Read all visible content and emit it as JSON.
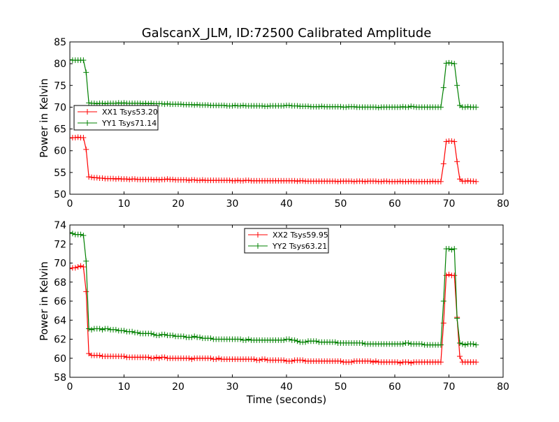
{
  "chart_data": [
    {
      "type": "line",
      "title": "GalscanX_JLM, ID:72500 Calibrated Amplitude",
      "xlabel": "",
      "ylabel": "Power in Kelvin",
      "xlim": [
        0,
        80
      ],
      "ylim": [
        50,
        85
      ],
      "xticks": [
        "0",
        "10",
        "20",
        "30",
        "40",
        "50",
        "60",
        "70",
        "80"
      ],
      "yticks": [
        "50",
        "55",
        "60",
        "65",
        "70",
        "75",
        "80",
        "85"
      ],
      "legend_position": "center-left",
      "x_start": 0,
      "x_step": 0.5,
      "series": [
        {
          "name": "XX1 Tsys53.20",
          "color": "#ff0000",
          "values": [
            62.9,
            63.0,
            63.0,
            63.1,
            63.0,
            63.0,
            60.3,
            54.0,
            53.9,
            53.8,
            53.8,
            53.7,
            53.7,
            53.6,
            53.6,
            53.6,
            53.6,
            53.5,
            53.6,
            53.5,
            53.5,
            53.5,
            53.4,
            53.5,
            53.5,
            53.4,
            53.4,
            53.4,
            53.4,
            53.4,
            53.4,
            53.3,
            53.4,
            53.3,
            53.4,
            53.4,
            53.5,
            53.4,
            53.4,
            53.3,
            53.3,
            53.3,
            53.3,
            53.3,
            53.2,
            53.3,
            53.3,
            53.2,
            53.2,
            53.3,
            53.2,
            53.2,
            53.2,
            53.2,
            53.2,
            53.2,
            53.2,
            53.2,
            53.2,
            53.2,
            53.1,
            53.1,
            53.2,
            53.1,
            53.1,
            53.2,
            53.2,
            53.1,
            53.1,
            53.1,
            53.1,
            53.1,
            53.1,
            53.1,
            53.1,
            53.1,
            53.1,
            53.1,
            53.1,
            53.1,
            53.1,
            53.1,
            53.1,
            53.1,
            53.0,
            53.1,
            53.1,
            53.0,
            53.0,
            53.0,
            53.0,
            53.0,
            53.0,
            53.0,
            53.0,
            53.0,
            53.0,
            53.0,
            53.0,
            52.9,
            53.0,
            53.0,
            53.0,
            53.0,
            53.0,
            52.9,
            53.0,
            53.0,
            53.0,
            52.9,
            53.0,
            53.0,
            53.0,
            53.0,
            52.9,
            52.9,
            53.0,
            53.0,
            52.9,
            52.9,
            52.9,
            52.9,
            53.0,
            52.9,
            52.9,
            52.9,
            53.0,
            52.9,
            52.9,
            52.9,
            52.9,
            52.9,
            52.9,
            52.9,
            53.0,
            52.9,
            52.9,
            52.9,
            57.0,
            62.1,
            62.2,
            62.2,
            62.1,
            57.5,
            53.5,
            53.0,
            53.0,
            53.1,
            53.0,
            53.0,
            52.9
          ]
        },
        {
          "name": "YY1 Tsys71.14",
          "color": "#008000",
          "values": [
            80.9,
            80.8,
            80.8,
            80.8,
            80.8,
            80.8,
            78.0,
            71.0,
            70.9,
            70.9,
            70.8,
            70.9,
            70.9,
            70.8,
            70.9,
            70.9,
            70.9,
            70.9,
            71.0,
            70.9,
            71.0,
            70.9,
            70.9,
            70.9,
            70.9,
            70.9,
            70.9,
            70.8,
            70.9,
            70.8,
            70.9,
            70.8,
            70.8,
            70.8,
            70.8,
            70.7,
            70.8,
            70.7,
            70.7,
            70.7,
            70.7,
            70.7,
            70.6,
            70.6,
            70.6,
            70.6,
            70.5,
            70.6,
            70.5,
            70.5,
            70.5,
            70.5,
            70.4,
            70.4,
            70.4,
            70.4,
            70.4,
            70.4,
            70.3,
            70.3,
            70.3,
            70.4,
            70.3,
            70.3,
            70.4,
            70.3,
            70.3,
            70.3,
            70.3,
            70.3,
            70.3,
            70.3,
            70.2,
            70.2,
            70.3,
            70.3,
            70.3,
            70.3,
            70.3,
            70.3,
            70.4,
            70.4,
            70.3,
            70.3,
            70.3,
            70.2,
            70.2,
            70.2,
            70.2,
            70.1,
            70.1,
            70.1,
            70.1,
            70.2,
            70.1,
            70.1,
            70.1,
            70.1,
            70.1,
            70.1,
            70.1,
            70.0,
            70.0,
            70.1,
            70.1,
            70.1,
            70.0,
            70.0,
            70.0,
            70.0,
            70.0,
            70.0,
            70.0,
            70.0,
            69.9,
            70.0,
            70.0,
            70.0,
            70.0,
            70.0,
            70.0,
            70.0,
            70.0,
            70.1,
            70.0,
            70.0,
            70.2,
            70.1,
            70.0,
            70.0,
            70.0,
            70.0,
            70.0,
            70.0,
            70.0,
            70.0,
            70.0,
            70.0,
            74.5,
            80.1,
            80.2,
            80.1,
            80.0,
            75.0,
            70.4,
            70.0,
            70.0,
            70.1,
            70.0,
            70.0,
            70.0
          ]
        }
      ]
    },
    {
      "type": "line",
      "title": "",
      "xlabel": "Time (seconds)",
      "ylabel": "Power in Kelvin",
      "xlim": [
        0,
        80
      ],
      "ylim": [
        58,
        74
      ],
      "xticks": [
        "0",
        "10",
        "20",
        "30",
        "40",
        "50",
        "60",
        "70",
        "80"
      ],
      "yticks": [
        "58",
        "60",
        "62",
        "64",
        "66",
        "68",
        "70",
        "72",
        "74"
      ],
      "legend_position": "upper-center",
      "x_start": 0,
      "x_step": 0.5,
      "series": [
        {
          "name": "XX2 Tsys59.95",
          "color": "#ff0000",
          "values": [
            69.4,
            69.5,
            69.5,
            69.6,
            69.7,
            69.6,
            67.0,
            60.5,
            60.3,
            60.3,
            60.3,
            60.3,
            60.2,
            60.2,
            60.2,
            60.2,
            60.2,
            60.2,
            60.2,
            60.2,
            60.2,
            60.1,
            60.1,
            60.1,
            60.1,
            60.1,
            60.1,
            60.1,
            60.1,
            60.1,
            60.0,
            60.0,
            60.1,
            60.0,
            60.1,
            60.1,
            60.0,
            60.0,
            60.0,
            60.0,
            60.0,
            60.0,
            60.0,
            60.0,
            60.0,
            59.9,
            60.0,
            60.0,
            60.0,
            60.0,
            60.0,
            60.0,
            60.0,
            59.9,
            59.9,
            60.0,
            59.9,
            59.9,
            59.9,
            59.9,
            59.9,
            59.9,
            59.9,
            59.9,
            59.9,
            59.9,
            59.9,
            59.9,
            59.9,
            59.8,
            59.8,
            59.9,
            59.9,
            59.8,
            59.8,
            59.8,
            59.8,
            59.8,
            59.8,
            59.8,
            59.7,
            59.7,
            59.7,
            59.8,
            59.8,
            59.8,
            59.8,
            59.7,
            59.7,
            59.7,
            59.7,
            59.7,
            59.7,
            59.7,
            59.7,
            59.7,
            59.7,
            59.7,
            59.7,
            59.7,
            59.7,
            59.6,
            59.6,
            59.6,
            59.6,
            59.7,
            59.7,
            59.7,
            59.7,
            59.7,
            59.7,
            59.7,
            59.6,
            59.7,
            59.6,
            59.6,
            59.6,
            59.6,
            59.6,
            59.6,
            59.6,
            59.6,
            59.5,
            59.6,
            59.6,
            59.6,
            59.5,
            59.6,
            59.6,
            59.6,
            59.6,
            59.6,
            59.6,
            59.6,
            59.6,
            59.6,
            59.6,
            59.6,
            63.7,
            68.7,
            68.8,
            68.7,
            68.7,
            64.3,
            60.2,
            59.6,
            59.6,
            59.6,
            59.6,
            59.6,
            59.6
          ]
        },
        {
          "name": "YY2 Tsys63.21",
          "color": "#008000",
          "values": [
            73.2,
            73.1,
            73.0,
            73.0,
            73.0,
            72.9,
            70.2,
            63.1,
            63.0,
            63.1,
            63.1,
            63.1,
            63.0,
            63.1,
            63.1,
            63.0,
            63.0,
            63.0,
            62.9,
            62.9,
            62.9,
            62.8,
            62.8,
            62.8,
            62.7,
            62.7,
            62.6,
            62.6,
            62.6,
            62.6,
            62.6,
            62.5,
            62.4,
            62.4,
            62.5,
            62.5,
            62.4,
            62.4,
            62.4,
            62.3,
            62.3,
            62.3,
            62.3,
            62.2,
            62.2,
            62.2,
            62.3,
            62.2,
            62.2,
            62.1,
            62.1,
            62.1,
            62.1,
            62.0,
            62.0,
            62.0,
            62.0,
            62.0,
            62.0,
            62.0,
            62.0,
            62.0,
            62.0,
            62.0,
            61.9,
            61.9,
            62.0,
            61.9,
            61.9,
            61.9,
            61.9,
            61.9,
            61.9,
            61.9,
            61.9,
            61.9,
            61.9,
            61.9,
            61.9,
            61.9,
            62.0,
            62.0,
            61.9,
            61.9,
            61.8,
            61.7,
            61.7,
            61.7,
            61.8,
            61.8,
            61.8,
            61.8,
            61.7,
            61.7,
            61.7,
            61.7,
            61.7,
            61.7,
            61.7,
            61.6,
            61.6,
            61.6,
            61.6,
            61.6,
            61.6,
            61.6,
            61.6,
            61.6,
            61.6,
            61.5,
            61.5,
            61.5,
            61.5,
            61.5,
            61.5,
            61.5,
            61.5,
            61.5,
            61.5,
            61.5,
            61.5,
            61.5,
            61.5,
            61.5,
            61.6,
            61.6,
            61.5,
            61.5,
            61.5,
            61.5,
            61.5,
            61.4,
            61.4,
            61.4,
            61.4,
            61.4,
            61.4,
            61.4,
            66.0,
            71.5,
            71.5,
            71.4,
            71.5,
            64.2,
            61.6,
            61.5,
            61.4,
            61.5,
            61.5,
            61.5,
            61.4
          ]
        }
      ]
    }
  ]
}
